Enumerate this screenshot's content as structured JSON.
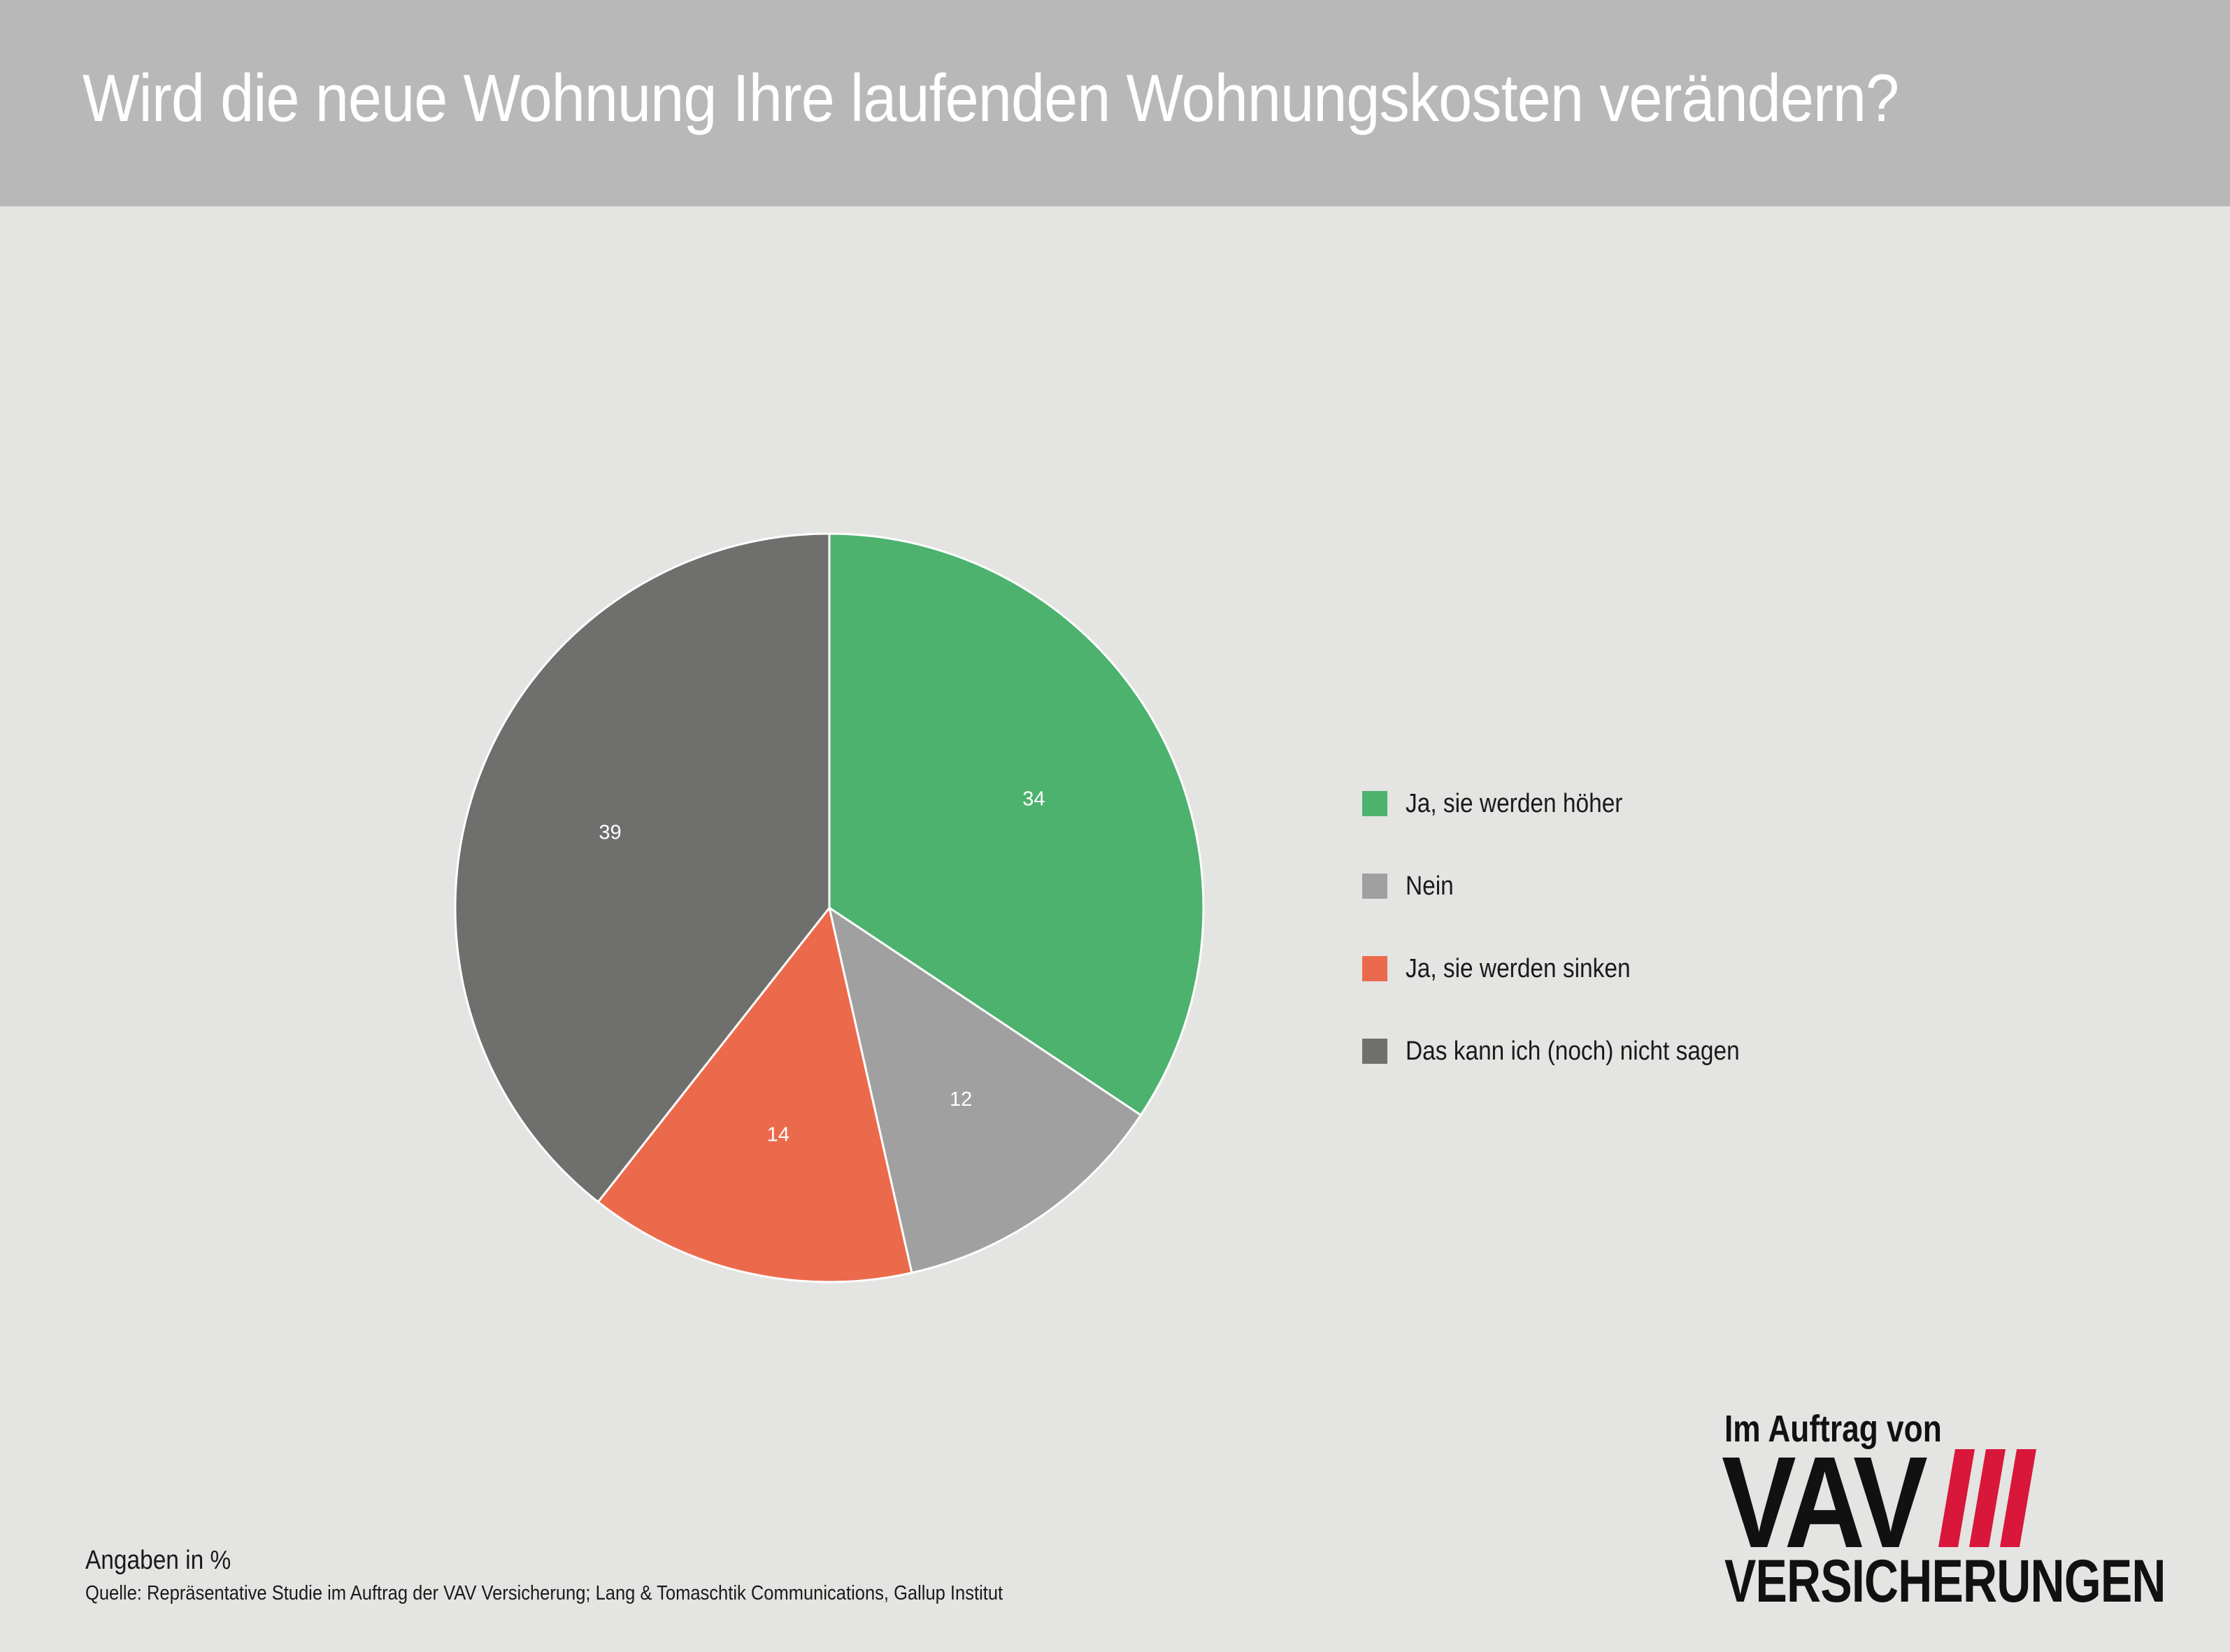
{
  "header": {
    "title": "Wird die neue Wohnung Ihre laufenden Wohnungskosten verändern?"
  },
  "chart_data": {
    "type": "pie",
    "title": "Wird die neue Wohnung Ihre laufenden Wohnungskosten verändern?",
    "categories": [
      "Ja, sie werden höher",
      "Nein",
      "Ja, sie werden sinken",
      "Das kann ich (noch) nicht sagen"
    ],
    "values": [
      34,
      12,
      14,
      39
    ],
    "data_labels": [
      "34",
      "12",
      "14",
      "39"
    ],
    "colors": [
      "#4cb26e",
      "#a0a0a0",
      "#ec6a4c",
      "#6f6f6d"
    ],
    "start_angle_deg": 0,
    "direction": "clockwise",
    "legend_position": "right"
  },
  "legend": {
    "items": [
      {
        "label": "Ja, sie werden höher",
        "color": "#4cb26e"
      },
      {
        "label": "Nein",
        "color": "#a0a0a0"
      },
      {
        "label": "Ja, sie werden sinken",
        "color": "#ec6a4c"
      },
      {
        "label": "Das kann ich (noch) nicht sagen",
        "color": "#6f6f6d"
      }
    ]
  },
  "footer": {
    "unit_note": "Angaben in %",
    "source": "Quelle: Repräsentative Studie im Auftrag der VAV Versicherung; Lang & Tomaschtik Communications, Gallup Institut"
  },
  "logo": {
    "line1": "Im Auftrag von",
    "brand": "VAV",
    "line2": "VERSICHERUNGEN",
    "stripe_color": "#d8173a"
  }
}
